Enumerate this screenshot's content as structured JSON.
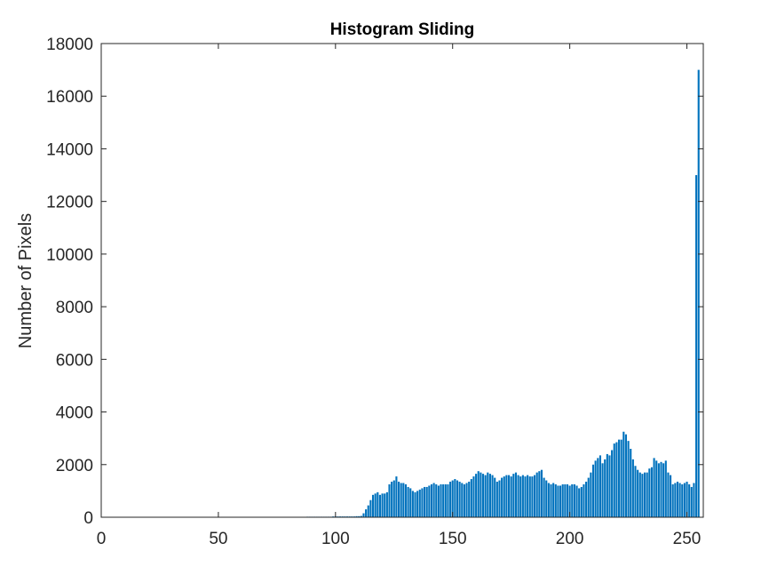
{
  "chart_data": {
    "type": "bar",
    "title": "Histogram Sliding",
    "xlabel": "",
    "ylabel": "Number of Pixels",
    "xlim": [
      0,
      257
    ],
    "ylim": [
      0,
      18000
    ],
    "xticks": [
      0,
      50,
      100,
      150,
      200,
      250
    ],
    "xtick_labels": [
      "0",
      "50",
      "100",
      "150",
      "200",
      "250"
    ],
    "yticks": [
      0,
      2000,
      4000,
      6000,
      8000,
      10000,
      12000,
      14000,
      16000,
      18000
    ],
    "ytick_labels": [
      "0",
      "2000",
      "4000",
      "6000",
      "8000",
      "10000",
      "12000",
      "14000",
      "16000",
      "18000"
    ],
    "grid": false,
    "bar_color": "#0072BD",
    "x_start": 1,
    "values": [
      0,
      0,
      0,
      0,
      0,
      0,
      0,
      0,
      0,
      0,
      0,
      0,
      0,
      0,
      0,
      0,
      0,
      0,
      0,
      0,
      0,
      0,
      0,
      0,
      0,
      0,
      0,
      0,
      0,
      0,
      0,
      0,
      0,
      0,
      0,
      0,
      0,
      0,
      0,
      0,
      0,
      0,
      0,
      0,
      0,
      0,
      0,
      0,
      0,
      0,
      0,
      0,
      0,
      0,
      0,
      0,
      0,
      0,
      0,
      0,
      0,
      0,
      0,
      0,
      0,
      0,
      0,
      0,
      0,
      0,
      0,
      0,
      0,
      0,
      0,
      0,
      0,
      0,
      0,
      0,
      0,
      0,
      0,
      0,
      0,
      0,
      0,
      20,
      20,
      20,
      20,
      20,
      20,
      20,
      20,
      20,
      20,
      20,
      30,
      30,
      30,
      30,
      30,
      30,
      30,
      30,
      30,
      30,
      40,
      40,
      50,
      150,
      300,
      450,
      650,
      850,
      900,
      950,
      850,
      900,
      900,
      950,
      1250,
      1350,
      1400,
      1550,
      1350,
      1300,
      1300,
      1250,
      1150,
      1100,
      1000,
      950,
      1000,
      1050,
      1100,
      1150,
      1150,
      1200,
      1250,
      1300,
      1250,
      1200,
      1250,
      1250,
      1250,
      1250,
      1350,
      1400,
      1450,
      1400,
      1350,
      1300,
      1250,
      1300,
      1350,
      1450,
      1550,
      1650,
      1750,
      1700,
      1650,
      1600,
      1700,
      1650,
      1600,
      1500,
      1350,
      1400,
      1500,
      1550,
      1600,
      1600,
      1550,
      1650,
      1700,
      1600,
      1550,
      1600,
      1550,
      1600,
      1550,
      1550,
      1600,
      1700,
      1750,
      1800,
      1500,
      1400,
      1300,
      1250,
      1300,
      1250,
      1200,
      1200,
      1250,
      1250,
      1250,
      1200,
      1250,
      1250,
      1200,
      1100,
      1150,
      1250,
      1350,
      1500,
      1700,
      2000,
      2150,
      2250,
      2350,
      2050,
      2200,
      2400,
      2350,
      2550,
      2800,
      2850,
      2950,
      2950,
      3250,
      3150,
      2900,
      2600,
      2200,
      1950,
      1800,
      1700,
      1650,
      1700,
      1700,
      1850,
      1900,
      2250,
      2150,
      2050,
      2100,
      2050,
      2150,
      1700,
      1600,
      1250,
      1300,
      1350,
      1300,
      1250,
      1300,
      1350,
      1250,
      1150,
      1300,
      13000,
      17000
    ]
  }
}
